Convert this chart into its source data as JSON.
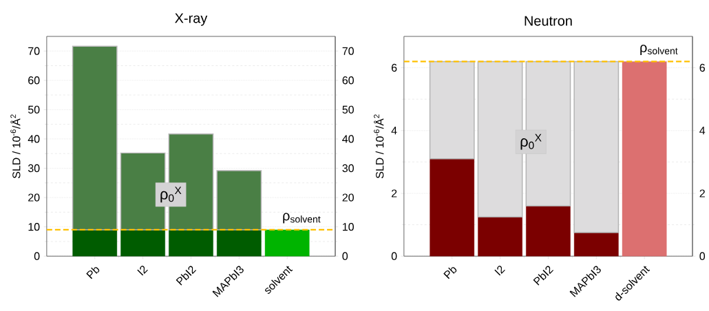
{
  "chart_data": [
    {
      "type": "bar",
      "title": "X-ray",
      "ylabel": "SLD / 10$^{-6}$/Å$^{2}$",
      "categories": [
        "Pb",
        "I2",
        "PbI2",
        "MAPbI3",
        "solvent"
      ],
      "stacked": true,
      "series": [
        {
          "colors": [
            "#005c00",
            "#005c00",
            "#005c00",
            "#005c00",
            "#00b400"
          ],
          "values": [
            9,
            9,
            9,
            9,
            9
          ]
        },
        {
          "color": "#4a7f45",
          "values": [
            62.6,
            26.2,
            32.7,
            20.2,
            null
          ]
        }
      ],
      "ylim": [
        0,
        75
      ],
      "yticks": [
        0,
        10,
        20,
        30,
        40,
        50,
        60,
        70
      ],
      "y2lim": [
        0,
        75
      ],
      "y2ticks": [
        0,
        10,
        20,
        30,
        40,
        50,
        60,
        70
      ],
      "grid": "y",
      "ref_lines": [
        {
          "axis": "y",
          "value": 9,
          "label": "ρ$_{solvent}$",
          "color": "#ffc000",
          "line_style": "dashed"
        }
      ],
      "annotations": [
        "ρ$_{0}$$^{X}$"
      ]
    },
    {
      "type": "bar",
      "title": "Neutron",
      "ylabel": "SLD / 10$^{-6}$/Å$^{2}$",
      "categories": [
        "Pb",
        "I2",
        "PbI2",
        "MAPbI3",
        "d-solvent"
      ],
      "stacked": true,
      "series": [
        {
          "colors": [
            "#7b0000",
            "#7b0000",
            "#7b0000",
            "#7b0000",
            "#dc7070"
          ],
          "values": [
            3.1,
            1.25,
            1.6,
            0.75,
            6.2
          ]
        },
        {
          "color": "#dddcdd",
          "values": [
            3.1,
            4.95,
            4.6,
            5.45,
            null
          ]
        }
      ],
      "ylim": [
        0,
        7
      ],
      "yticks": [
        0,
        2,
        4,
        6
      ],
      "y2lim": [
        0,
        7
      ],
      "y2ticks": [
        0,
        2,
        4,
        6
      ],
      "grid": "y",
      "ref_lines": [
        {
          "axis": "y",
          "value": 6.2,
          "label": "ρ$_{solvent}$",
          "color": "#ffc000",
          "line_style": "dashed"
        }
      ],
      "annotations": [
        "ρ$_{0}$$^{X}$"
      ]
    }
  ]
}
